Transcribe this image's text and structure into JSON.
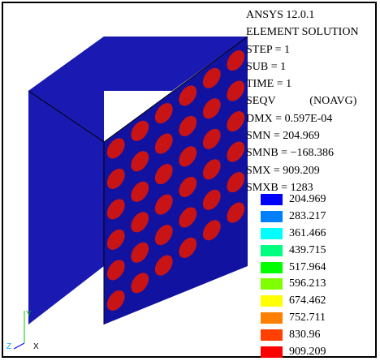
{
  "viewport": {
    "info_lines": [
      "ANSYS 12.0.1",
      "ELEMENT SOLUTION",
      "STEP = 1",
      "SUB = 1",
      "TIME = 1",
      "SEQV            (NOAVG)",
      "DMX = 0.597E-04",
      "SMN = 204.969",
      "SMNB = −168.386",
      "SMX = 909.209",
      "SMXB = 1283"
    ],
    "legend": [
      {
        "value": "204.969",
        "color": "#0000ff"
      },
      {
        "value": "283.217",
        "color": "#0080ff"
      },
      {
        "value": "361.466",
        "color": "#00ffff"
      },
      {
        "value": "439.715",
        "color": "#00ff80"
      },
      {
        "value": "517.964",
        "color": "#00ff00"
      },
      {
        "value": "596.213",
        "color": "#80ff00"
      },
      {
        "value": "674.462",
        "color": "#ffff00"
      },
      {
        "value": "752.711",
        "color": "#ff8000"
      },
      {
        "value": "830.96",
        "color": "#ff4000"
      },
      {
        "value": "909.209",
        "color": "#ff0000"
      }
    ],
    "triad": {
      "y_label": "Y",
      "z_label": "Z",
      "x_label": "X"
    },
    "model": {
      "block_color": "#1a1ab3",
      "block_side_color": "#1212a0",
      "block_top_color": "#1a1ab3",
      "fiber_color": "#c81414",
      "fiber_rows": 6,
      "fiber_cols": 6
    }
  }
}
